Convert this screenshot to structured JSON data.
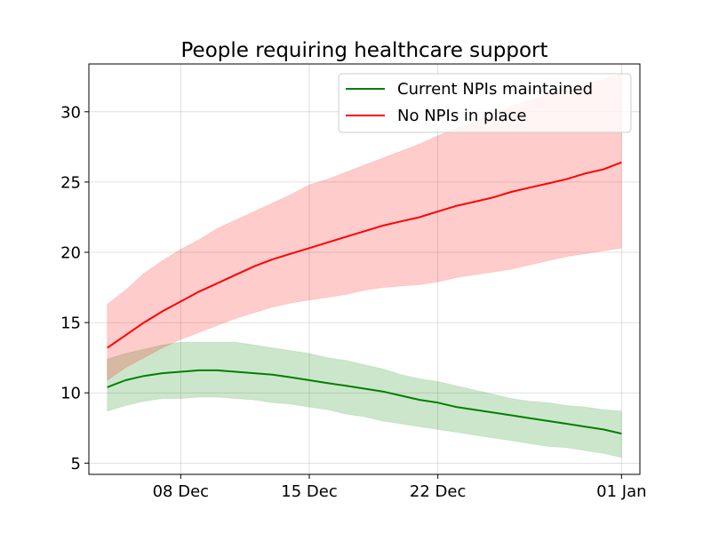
{
  "chart_data": {
    "type": "line",
    "title": "People requiring healthcare support",
    "xlabel": "",
    "ylabel": "",
    "x_tick_labels": [
      "08 Dec",
      "15 Dec",
      "22 Dec",
      "01 Jan"
    ],
    "x_ticks": [
      "2020-12-08",
      "2020-12-15",
      "2020-12-22",
      "2021-01-01"
    ],
    "y_ticks": [
      5,
      10,
      15,
      20,
      25,
      30
    ],
    "xlim": [
      "2020-12-03",
      "2021-01-02"
    ],
    "ylim": [
      4.2,
      33.4
    ],
    "grid": true,
    "legend_position": "top-right",
    "x": [
      "2020-12-04",
      "2020-12-05",
      "2020-12-06",
      "2020-12-07",
      "2020-12-08",
      "2020-12-09",
      "2020-12-10",
      "2020-12-11",
      "2020-12-12",
      "2020-12-13",
      "2020-12-14",
      "2020-12-15",
      "2020-12-16",
      "2020-12-17",
      "2020-12-18",
      "2020-12-19",
      "2020-12-20",
      "2020-12-21",
      "2020-12-22",
      "2020-12-23",
      "2020-12-24",
      "2020-12-25",
      "2020-12-26",
      "2020-12-27",
      "2020-12-28",
      "2020-12-29",
      "2020-12-30",
      "2020-12-31",
      "2021-01-01"
    ],
    "series": [
      {
        "name": "Current NPIs maintained",
        "color": "#008000",
        "values": [
          10.4,
          10.9,
          11.2,
          11.4,
          11.5,
          11.6,
          11.6,
          11.5,
          11.4,
          11.3,
          11.1,
          10.9,
          10.7,
          10.5,
          10.3,
          10.1,
          9.8,
          9.5,
          9.3,
          9.0,
          8.8,
          8.6,
          8.4,
          8.2,
          8.0,
          7.8,
          7.6,
          7.4,
          7.1
        ],
        "lower": [
          8.7,
          9.1,
          9.4,
          9.6,
          9.6,
          9.7,
          9.7,
          9.6,
          9.5,
          9.3,
          9.2,
          9.0,
          8.8,
          8.5,
          8.3,
          8.0,
          7.8,
          7.6,
          7.4,
          7.2,
          7.0,
          6.8,
          6.6,
          6.4,
          6.2,
          6.1,
          5.9,
          5.7,
          5.4
        ],
        "upper": [
          12.4,
          12.8,
          13.1,
          13.4,
          13.6,
          13.6,
          13.6,
          13.6,
          13.4,
          13.2,
          13.0,
          12.8,
          12.5,
          12.3,
          12.0,
          11.7,
          11.3,
          11.0,
          10.8,
          10.5,
          10.2,
          9.9,
          9.6,
          9.4,
          9.3,
          9.1,
          9.0,
          8.8,
          8.7
        ]
      },
      {
        "name": "No NPIs in place",
        "color": "#ff0000",
        "values": [
          13.2,
          14.1,
          15.0,
          15.8,
          16.5,
          17.2,
          17.8,
          18.4,
          19.0,
          19.5,
          19.9,
          20.3,
          20.7,
          21.1,
          21.5,
          21.9,
          22.2,
          22.5,
          22.9,
          23.3,
          23.6,
          23.9,
          24.3,
          24.6,
          24.9,
          25.2,
          25.6,
          25.9,
          26.4
        ],
        "lower": [
          10.9,
          11.8,
          12.5,
          13.2,
          13.8,
          14.3,
          14.8,
          15.3,
          15.7,
          16.1,
          16.4,
          16.6,
          16.8,
          17.0,
          17.3,
          17.5,
          17.6,
          17.7,
          17.9,
          18.2,
          18.4,
          18.6,
          18.8,
          19.1,
          19.4,
          19.7,
          19.9,
          20.1,
          20.3
        ],
        "upper": [
          16.3,
          17.3,
          18.5,
          19.4,
          20.2,
          20.9,
          21.7,
          22.3,
          22.9,
          23.5,
          24.1,
          24.8,
          25.2,
          25.7,
          26.2,
          26.7,
          27.2,
          27.7,
          28.3,
          28.8,
          29.3,
          29.9,
          30.4,
          30.8,
          31.2,
          31.6,
          32.0,
          32.3,
          32.7
        ]
      }
    ]
  }
}
